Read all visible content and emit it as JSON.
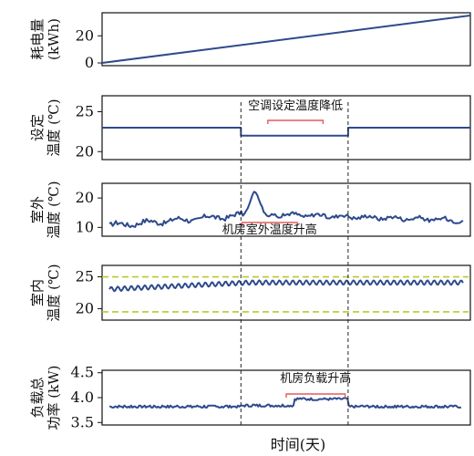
{
  "chart_data": [
    {
      "type": "line",
      "ylabel": "耗电量 (kWh)",
      "ylabel_lines": [
        "耗电量",
        "(kWh)"
      ],
      "yticks": [
        0,
        20
      ],
      "ylim": [
        -2,
        37
      ],
      "x": [
        0,
        100
      ],
      "y": [
        0,
        35
      ],
      "series_color": "#2e4a8c"
    },
    {
      "type": "line",
      "ylabel": "设定 温度 (℃)",
      "ylabel_lines": [
        "设定",
        "温度 (℃)"
      ],
      "yticks": [
        20,
        25
      ],
      "ylim": [
        19,
        27
      ],
      "annotation": "空调设定温度降低",
      "series_color": "#2e4a8c",
      "series": [
        {
          "steps": [
            [
              0,
              23
            ],
            [
              37.7,
              23
            ],
            [
              37.7,
              22
            ],
            [
              66.8,
              22
            ],
            [
              66.8,
              23
            ],
            [
              100,
              23
            ]
          ]
        }
      ]
    },
    {
      "type": "line",
      "ylabel": "室外 温度 (℃)",
      "ylabel_lines": [
        "室外",
        "温度 (℃)"
      ],
      "yticks": [
        10,
        20
      ],
      "ylim": [
        7,
        25
      ],
      "annotation": "机房室外温度升高",
      "series_color": "#2e4a8c"
    },
    {
      "type": "line",
      "ylabel": "室内 温度 (℃)",
      "ylabel_lines": [
        "室内",
        "温度 (℃)"
      ],
      "yticks": [
        20,
        25
      ],
      "ylim": [
        18.2,
        26.8
      ],
      "reference_lines": [
        25,
        19.5
      ],
      "reference_color": "#b9c92a",
      "series_color": "#2e4a8c"
    },
    {
      "type": "line",
      "ylabel": "负载总 功率 (kW)",
      "ylabel_lines": [
        "负载总",
        "功率 (kW)"
      ],
      "yticks": [
        3.5,
        4.0,
        4.5
      ],
      "ylim": [
        3.45,
        4.55
      ],
      "annotation": "机房负载升高",
      "series_color": "#2e4a8c",
      "series": [
        {
          "levels": [
            [
              0,
              37.7,
              3.82
            ],
            [
              37.7,
              52,
              3.84
            ],
            [
              52,
              66.8,
              3.97
            ],
            [
              66.8,
              100,
              3.82
            ]
          ]
        }
      ]
    }
  ],
  "xlabel": "时间(天)",
  "event_lines_x": [
    37.7,
    66.8
  ],
  "annotation_color": "#e35b5b"
}
